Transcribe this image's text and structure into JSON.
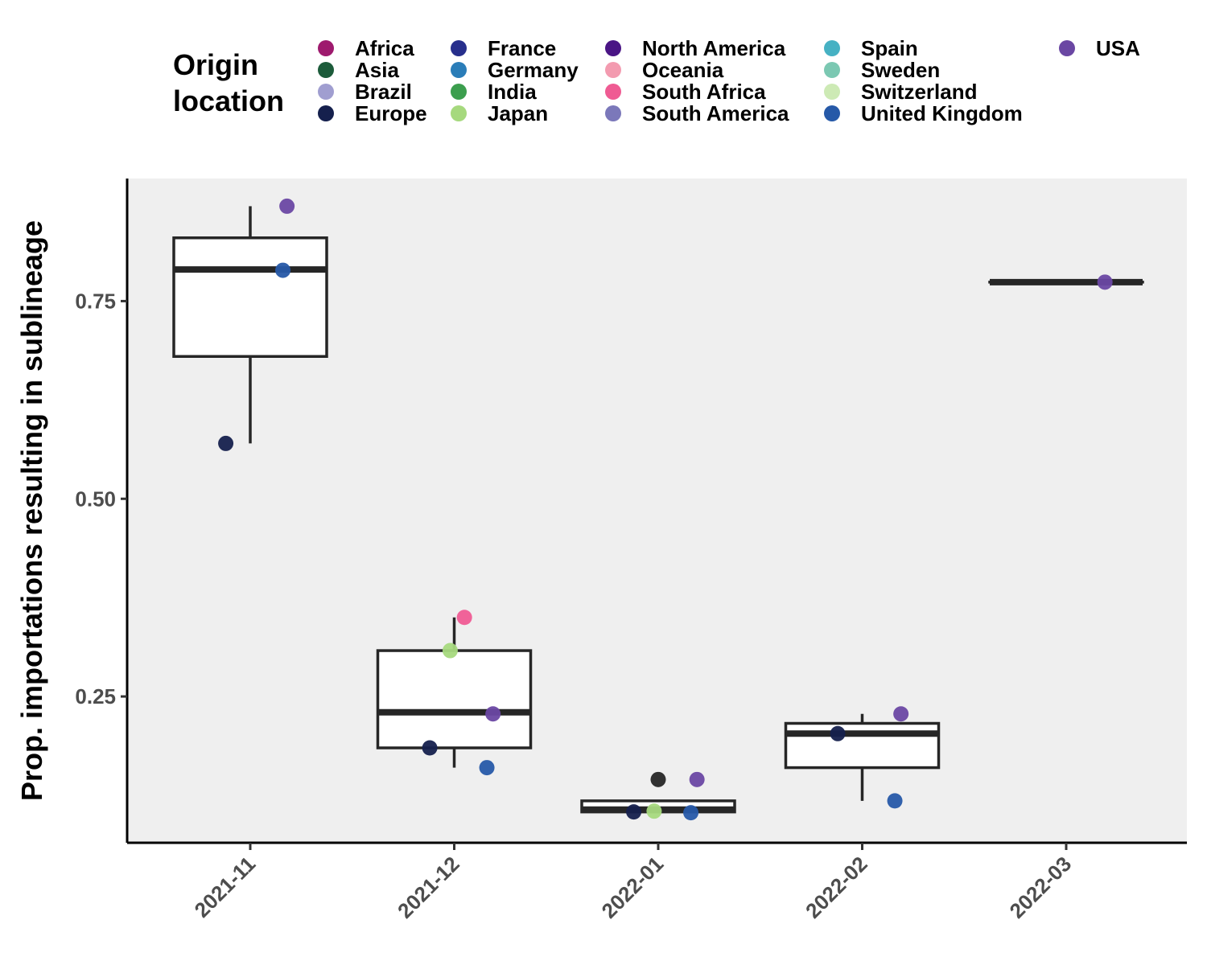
{
  "chart_data": {
    "type": "box+scatter",
    "title": "",
    "xlabel": "",
    "ylabel": "Prop. importations resulting in sublineage",
    "ylim": [
      0.065,
      0.905
    ],
    "yticks": [
      0.25,
      0.5,
      0.75
    ],
    "ytick_labels": [
      "0.25",
      "0.50",
      "0.75"
    ],
    "categories": [
      "2021-11",
      "2021-12",
      "2022-01",
      "2022-02",
      "2022-03"
    ],
    "legend": {
      "title_lines": [
        "Origin",
        "location"
      ],
      "placement": "top",
      "entries": [
        {
          "name": "Africa",
          "color": "#9e1a6e"
        },
        {
          "name": "Asia",
          "color": "#1c5b3a"
        },
        {
          "name": "Brazil",
          "color": "#a09ed0"
        },
        {
          "name": "Europe",
          "color": "#15204d"
        },
        {
          "name": "France",
          "color": "#272f8c"
        },
        {
          "name": "Germany",
          "color": "#2a7db8"
        },
        {
          "name": "India",
          "color": "#3c9e4e"
        },
        {
          "name": "Japan",
          "color": "#a6d97e"
        },
        {
          "name": "North America",
          "color": "#4a1585"
        },
        {
          "name": "Oceania",
          "color": "#f39bb0"
        },
        {
          "name": "South Africa",
          "color": "#ef5b93"
        },
        {
          "name": "South America",
          "color": "#7b78ba"
        },
        {
          "name": "Spain",
          "color": "#46b1c3"
        },
        {
          "name": "Sweden",
          "color": "#7bc8b2"
        },
        {
          "name": "Switzerland",
          "color": "#cdeab5"
        },
        {
          "name": "United Kingdom",
          "color": "#2659a8"
        },
        {
          "name": "USA",
          "color": "#6a47a3"
        }
      ]
    },
    "boxes": [
      {
        "category": "2021-11",
        "whisker_low": 0.57,
        "q1": 0.68,
        "median": 0.79,
        "q3": 0.83,
        "whisker_high": 0.87
      },
      {
        "category": "2021-12",
        "whisker_low": 0.16,
        "q1": 0.185,
        "median": 0.23,
        "q3": 0.308,
        "whisker_high": 0.35
      },
      {
        "category": "2022-01",
        "whisker_low": 0.104,
        "q1": 0.104,
        "median": 0.107,
        "q3": 0.118,
        "whisker_high": 0.118
      },
      {
        "category": "2022-02",
        "whisker_low": 0.118,
        "q1": 0.16,
        "median": 0.203,
        "q3": 0.216,
        "whisker_high": 0.228
      },
      {
        "category": "2022-03",
        "whisker_low": 0.774,
        "q1": 0.774,
        "median": 0.774,
        "q3": 0.774,
        "whisker_high": 0.774
      }
    ],
    "points": [
      {
        "category": "2021-11",
        "origin": "USA",
        "y": 0.87,
        "jitter": 0.18
      },
      {
        "category": "2021-11",
        "origin": "United Kingdom",
        "y": 0.789,
        "jitter": 0.16
      },
      {
        "category": "2021-11",
        "origin": "Europe",
        "y": 0.57,
        "jitter": -0.12
      },
      {
        "category": "2021-12",
        "origin": "South Africa",
        "y": 0.35,
        "jitter": 0.05
      },
      {
        "category": "2021-12",
        "origin": "Japan",
        "y": 0.308,
        "jitter": -0.02
      },
      {
        "category": "2021-12",
        "origin": "USA",
        "y": 0.228,
        "jitter": 0.19
      },
      {
        "category": "2021-12",
        "origin": "Europe",
        "y": 0.185,
        "jitter": -0.12
      },
      {
        "category": "2021-12",
        "origin": "United Kingdom",
        "y": 0.16,
        "jitter": 0.16
      },
      {
        "category": "2022-01",
        "origin": "",
        "y": 0.145,
        "jitter": 0.0
      },
      {
        "category": "2022-01",
        "origin": "USA",
        "y": 0.145,
        "jitter": 0.19
      },
      {
        "category": "2022-01",
        "origin": "Europe",
        "y": 0.104,
        "jitter": -0.12
      },
      {
        "category": "2022-01",
        "origin": "Japan",
        "y": 0.105,
        "jitter": -0.02
      },
      {
        "category": "2022-01",
        "origin": "United Kingdom",
        "y": 0.103,
        "jitter": 0.16
      },
      {
        "category": "2022-02",
        "origin": "USA",
        "y": 0.228,
        "jitter": 0.19
      },
      {
        "category": "2022-02",
        "origin": "Europe",
        "y": 0.203,
        "jitter": -0.12
      },
      {
        "category": "2022-02",
        "origin": "United Kingdom",
        "y": 0.118,
        "jitter": 0.16
      },
      {
        "category": "2022-03",
        "origin": "USA",
        "y": 0.774,
        "jitter": 0.19
      }
    ],
    "colors": {
      "panel_background": "#efefef",
      "box_line": "#262626",
      "box_fill": "#ffffff",
      "axis_line": "#000000",
      "unknown_point": "#262626"
    },
    "grid": false
  }
}
